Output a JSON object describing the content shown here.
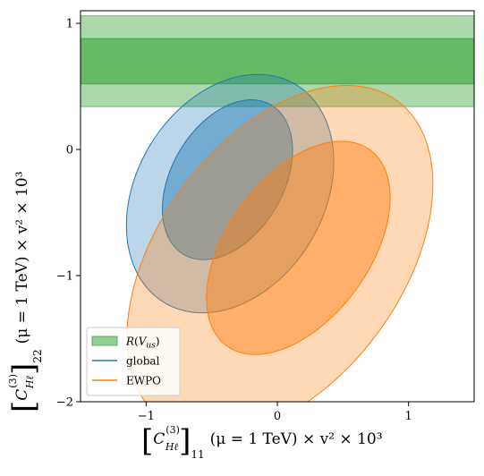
{
  "chart_data": {
    "type": "contour",
    "xlabel_parts": {
      "coef": "C",
      "super": "(3)",
      "sub": "Hℓ",
      "outer_sub": "11",
      "rest": "(μ = 1 TeV) × v² × 10³"
    },
    "ylabel_parts": {
      "coef": "C",
      "super": "(3)",
      "sub": "Hℓ",
      "outer_sub": "22",
      "rest": "(μ = 1 TeV) × v² × 10³"
    },
    "xlim": [
      -1.5,
      1.5
    ],
    "ylim": [
      -2.0,
      1.1
    ],
    "x_ticks": [
      -1,
      0,
      1
    ],
    "x_tick_labels": [
      "−1",
      "0",
      "1"
    ],
    "y_ticks": [
      -2,
      -1,
      0,
      1
    ],
    "y_tick_labels": [
      "−2",
      "−1",
      "0",
      "1"
    ],
    "grid": false,
    "legend_position": "lower-left",
    "series": [
      {
        "name": "R(V_us)",
        "legend_label": "R(Vus)",
        "kind": "band",
        "color": "#2ca02c",
        "inner": [
          0.52,
          0.88
        ],
        "outer": [
          0.34,
          1.06
        ]
      },
      {
        "name": "global",
        "legend_label": "global",
        "kind": "ellipses",
        "color": "#1f77b4",
        "inner": {
          "cx": -0.38,
          "cy": -0.24,
          "rx": 0.43,
          "ry": 0.68,
          "angle_deg": -28
        },
        "outer": {
          "cx": -0.36,
          "cy": -0.35,
          "rx": 0.72,
          "ry": 1.0,
          "angle_deg": -28
        }
      },
      {
        "name": "EWPO",
        "legend_label": "EWPO",
        "kind": "ellipses",
        "color": "#ff7f0e",
        "inner": {
          "cx": 0.16,
          "cy": -0.78,
          "rx": 0.55,
          "ry": 0.95,
          "angle_deg": -34
        },
        "outer": {
          "cx": 0.02,
          "cy": -0.88,
          "rx": 0.94,
          "ry": 1.55,
          "angle_deg": -34
        }
      }
    ]
  }
}
